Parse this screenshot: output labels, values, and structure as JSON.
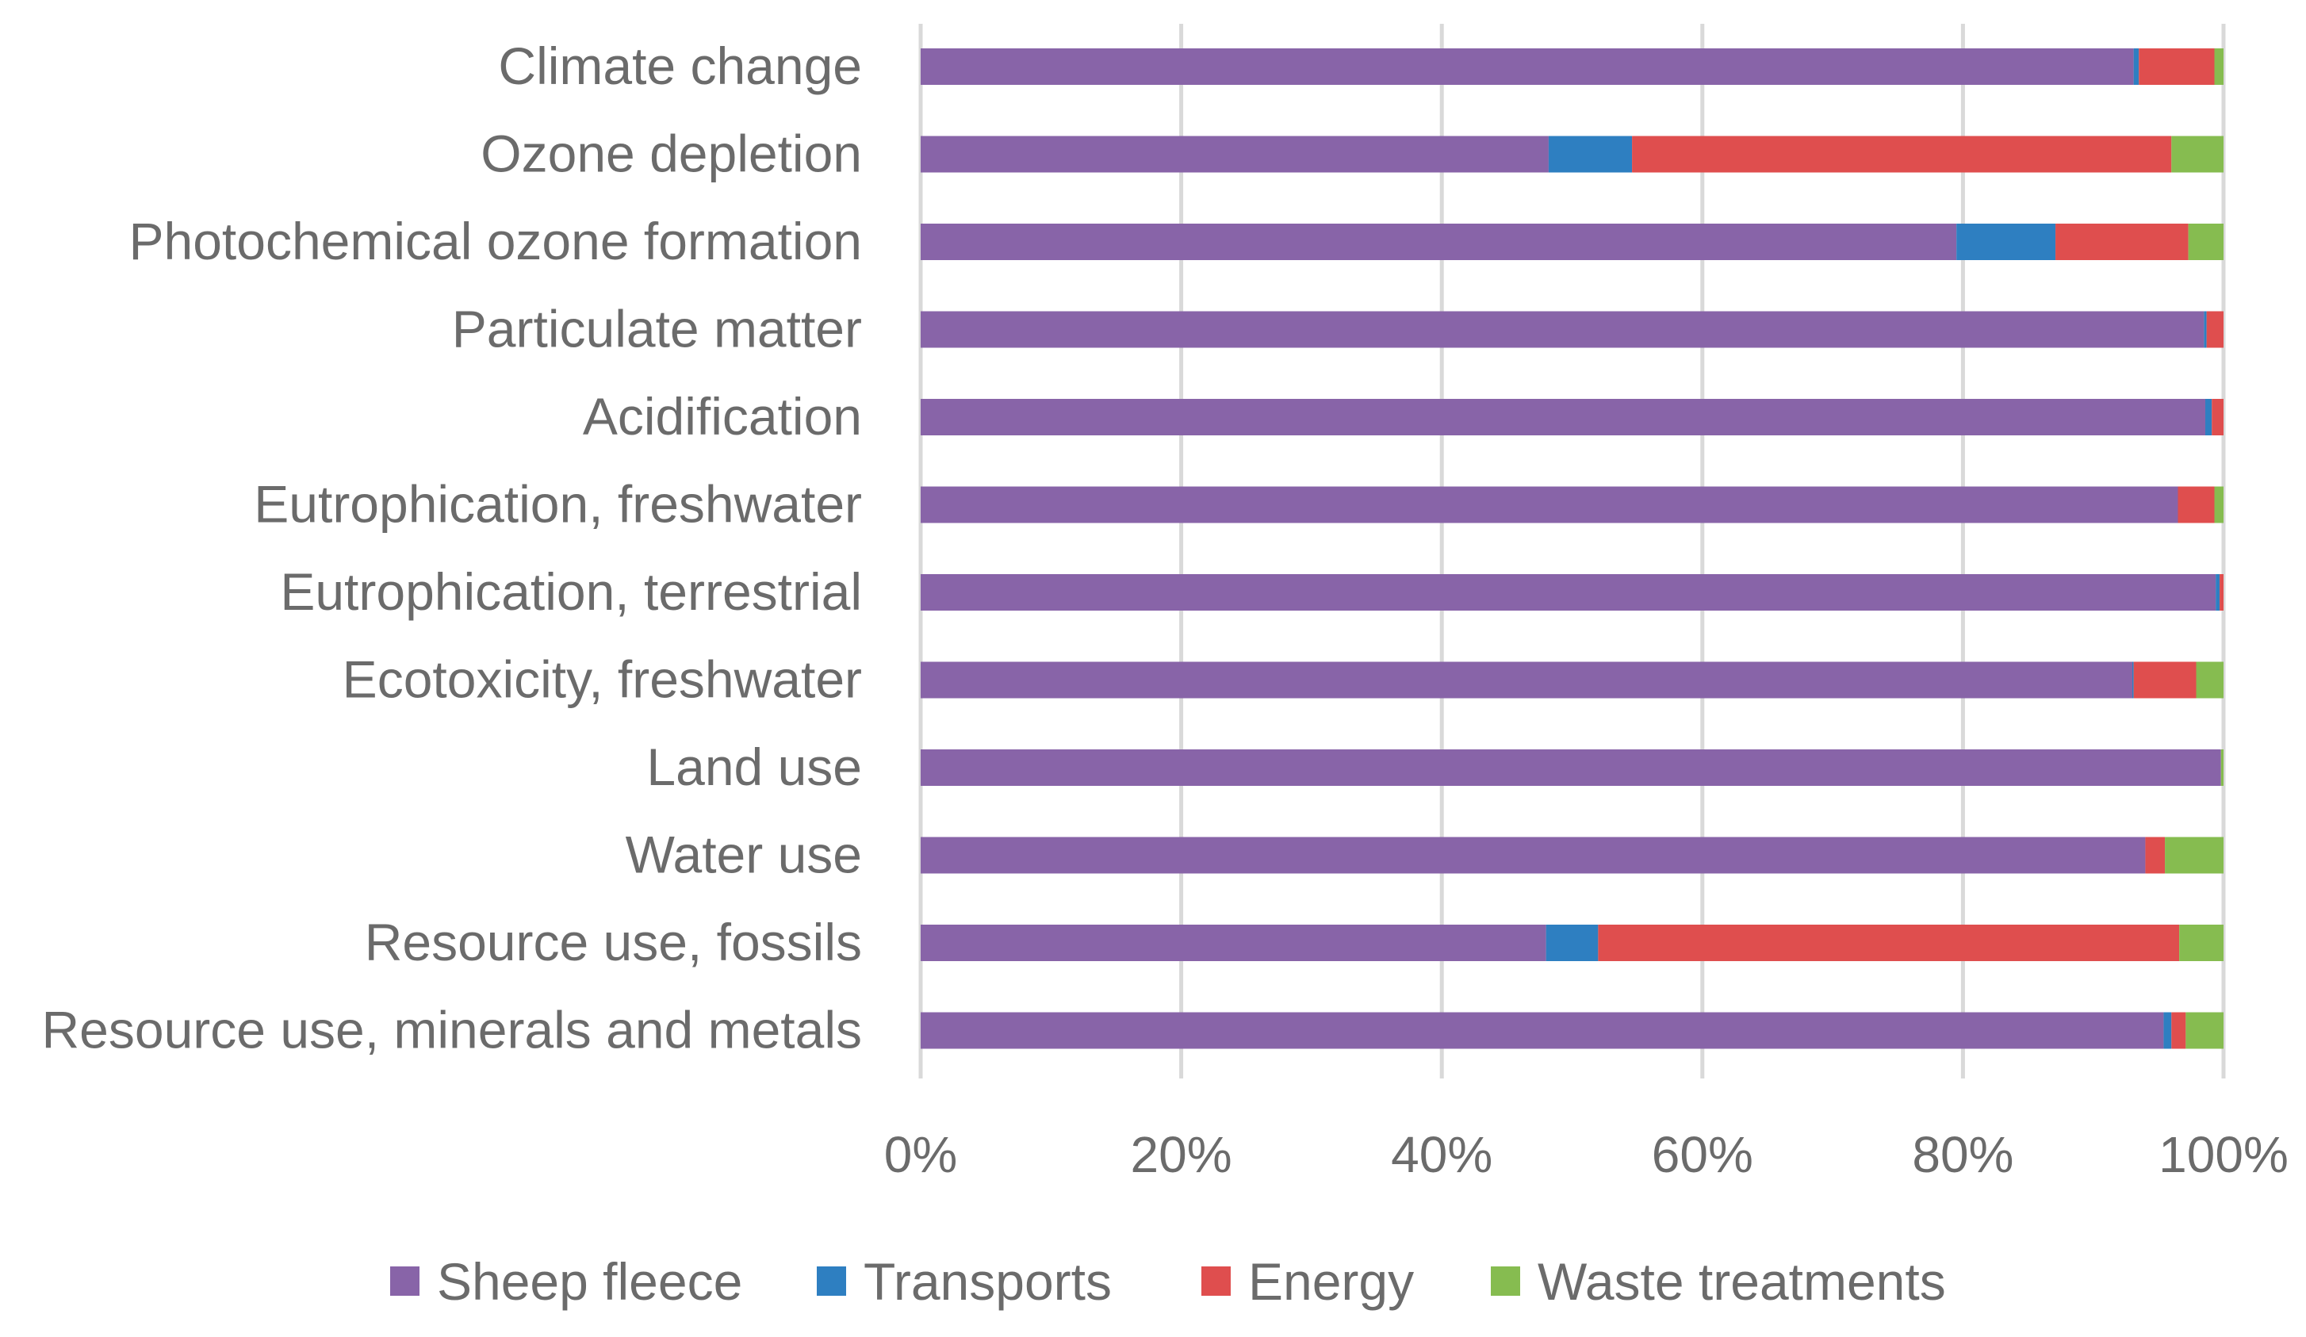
{
  "chart_data": {
    "type": "bar",
    "orientation": "horizontal",
    "stacking": "percent",
    "title": "",
    "xlabel": "",
    "ylabel": "",
    "categories": [
      "Climate change",
      "Ozone depletion",
      "Photochemical ozone formation",
      "Particulate matter",
      "Acidification",
      "Eutrophication, freshwater",
      "Eutrophication, terrestrial",
      "Ecotoxicity, freshwater",
      "Land use",
      "Water use",
      "Resource use, fossils",
      "Resource use, minerals and metals"
    ],
    "series": [
      {
        "name": "Sheep fleece",
        "color": "#8864a8",
        "values": [
          93.1,
          48.2,
          79.5,
          98.5,
          98.6,
          96.5,
          99.4,
          93.0,
          99.8,
          94.0,
          48.0,
          95.4
        ]
      },
      {
        "name": "Transports",
        "color": "#2e7fc1",
        "values": [
          0.4,
          6.4,
          7.6,
          0.2,
          0.5,
          0.0,
          0.3,
          0.1,
          0.0,
          0.0,
          4.0,
          0.6
        ]
      },
      {
        "name": "Energy",
        "color": "#df4e4e",
        "values": [
          5.8,
          41.4,
          10.2,
          1.3,
          0.9,
          2.8,
          0.3,
          4.8,
          0.0,
          1.5,
          44.6,
          1.1
        ]
      },
      {
        "name": "Waste treatments",
        "color": "#86bc50",
        "values": [
          0.7,
          4.0,
          2.7,
          0.0,
          0.0,
          0.7,
          0.0,
          2.1,
          0.2,
          4.5,
          3.4,
          2.9
        ]
      }
    ],
    "xlim": [
      0,
      100
    ],
    "x_ticks": [
      "0%",
      "20%",
      "40%",
      "60%",
      "80%",
      "100%"
    ],
    "grid": "vertical",
    "legend_position": "bottom"
  }
}
